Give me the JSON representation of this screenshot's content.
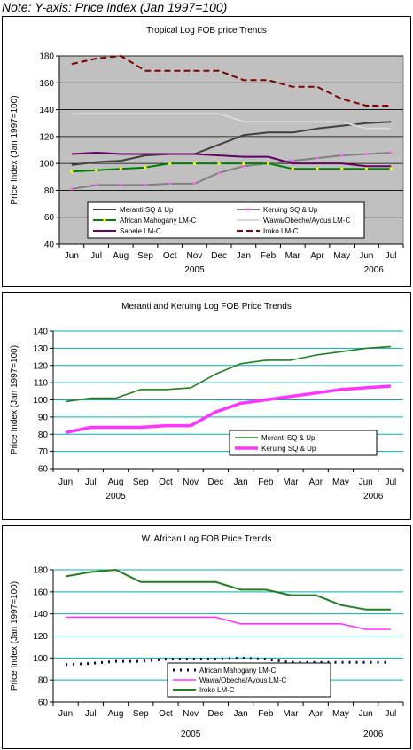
{
  "note": "Note: Y-axis: Price index (Jan 1997=100)",
  "chart_data": [
    {
      "type": "line",
      "title": "Tropical Log FOB price Trends",
      "ylabel": "Price Index (Jan 1997=100)",
      "xlabel": "",
      "categories": [
        "Jun",
        "Jul",
        "Aug",
        "Sep",
        "Oct",
        "Nov",
        "Dec",
        "Jan",
        "Feb",
        "Mar",
        "Apr",
        "May",
        "Jun",
        "Jul"
      ],
      "year_labels": [
        {
          "text": "2005",
          "index": 5
        },
        {
          "text": "2006",
          "index": 12.3
        }
      ],
      "ylim": [
        40,
        180
      ],
      "yticks": [
        40,
        60,
        80,
        100,
        120,
        140,
        160,
        180
      ],
      "grid": true,
      "plot_bg": "#c0c0c0",
      "legend_position": "bottom-inside",
      "legend": {
        "frame": true,
        "cols": 2
      },
      "series": [
        {
          "name": "Meranti SQ & Up",
          "color": "#404040",
          "dash": "",
          "marker": false,
          "values": [
            99,
            101,
            102,
            106,
            107,
            107,
            114,
            121,
            123,
            123,
            126,
            128,
            130,
            131
          ]
        },
        {
          "name": "Keruing SQ & Up",
          "color": "#808080",
          "dash": "",
          "marker": true,
          "values": [
            81,
            84,
            84,
            84,
            85,
            85,
            93,
            98,
            100,
            102,
            104,
            106,
            107,
            108
          ]
        },
        {
          "name": "African Mahogany LM-C",
          "color": "#008000",
          "dash": "",
          "marker": true,
          "values": [
            94,
            95,
            96,
            97,
            100,
            100,
            100,
            100,
            100,
            96,
            96,
            96,
            96,
            96
          ]
        },
        {
          "name": "Wawa/Obeche/Ayous LM-C",
          "color": "#d8d8d8",
          "dash": "",
          "marker": false,
          "values": [
            137,
            137,
            137,
            137,
            137,
            137,
            137,
            131,
            131,
            131,
            131,
            131,
            126,
            126
          ]
        },
        {
          "name": "Sapele LM-C",
          "color": "#660066",
          "dash": "",
          "marker": false,
          "values": [
            107,
            108,
            107,
            107,
            107,
            107,
            106,
            105,
            105,
            100,
            100,
            100,
            98,
            98
          ]
        },
        {
          "name": "Iroko LM-C",
          "color": "#800000",
          "dash": "7,4",
          "marker": false,
          "values": [
            174,
            178,
            180,
            169,
            169,
            169,
            169,
            162,
            162,
            157,
            157,
            148,
            143,
            143
          ]
        }
      ]
    },
    {
      "type": "line",
      "title": "Meranti and Keruing Log FOB Price Trends",
      "ylabel": "Price Index (Jan 1997=100)",
      "xlabel": "",
      "categories": [
        "Jun",
        "Jul",
        "Aug",
        "Sep",
        "Oct",
        "Nov",
        "Dec",
        "Jan",
        "Feb",
        "Mar",
        "Apr",
        "May",
        "Jun",
        "Jul"
      ],
      "year_labels": [
        {
          "text": "2005",
          "index": 2
        },
        {
          "text": "2006",
          "index": 12.3
        }
      ],
      "ylim": [
        60,
        140
      ],
      "yticks": [
        60,
        70,
        80,
        90,
        100,
        110,
        120,
        130,
        140
      ],
      "grid": true,
      "plot_bg": "#ffffff",
      "grid_color": "#00b0b0",
      "legend_position": "bottom-right-inside",
      "legend": {
        "frame": true,
        "cols": 1
      },
      "series": [
        {
          "name": "Meranti SQ & Up",
          "color": "#208020",
          "dash": "",
          "marker": false,
          "width": 1.6,
          "values": [
            99,
            101,
            101,
            106,
            106,
            107,
            115,
            121,
            123,
            123,
            126,
            128,
            130,
            131
          ]
        },
        {
          "name": "Keruing SQ & Up",
          "color": "#ff33ff",
          "dash": "",
          "marker": false,
          "width": 3.5,
          "values": [
            81,
            84,
            84,
            84,
            85,
            85,
            93,
            98,
            100,
            102,
            104,
            106,
            107,
            108
          ]
        }
      ]
    },
    {
      "type": "line",
      "title": "W. African Log FOB Price Trends",
      "ylabel": "Price Index (Jan 1997=100)",
      "xlabel": "",
      "categories": [
        "Jun",
        "Jul",
        "Aug",
        "Sep",
        "Oct",
        "Nov",
        "Dec",
        "Jan",
        "Feb",
        "Mar",
        "Apr",
        "May",
        "Jun",
        "Jul"
      ],
      "year_labels": [
        {
          "text": "2005",
          "index": 5
        },
        {
          "text": "2006",
          "index": 12.3
        }
      ],
      "ylim": [
        60,
        180
      ],
      "yticks": [
        60,
        80,
        100,
        120,
        140,
        160,
        180
      ],
      "grid": true,
      "plot_bg": "#ffffff",
      "grid_color": "#00b0b0",
      "legend_position": "bottom-center-inside",
      "legend": {
        "frame": true,
        "cols": 1
      },
      "series": [
        {
          "name": "African Mahogany LM-C",
          "color": "#000080",
          "dash": "2,6",
          "marker": false,
          "width": 3,
          "values": [
            94,
            95,
            97,
            97,
            99,
            99,
            99,
            100,
            99,
            96,
            96,
            96,
            96,
            96
          ]
        },
        {
          "name": "Wawa/Obeche/Ayous LM-C",
          "color": "#ff33ff",
          "dash": "",
          "marker": false,
          "width": 1.6,
          "values": [
            137,
            137,
            137,
            137,
            137,
            137,
            137,
            131,
            131,
            131,
            131,
            131,
            126,
            126
          ]
        },
        {
          "name": "Iroko LM-C",
          "color": "#208020",
          "dash": "",
          "marker": false,
          "width": 2,
          "values": [
            174,
            178,
            180,
            169,
            169,
            169,
            169,
            162,
            162,
            157,
            157,
            148,
            144,
            144
          ]
        }
      ]
    }
  ]
}
